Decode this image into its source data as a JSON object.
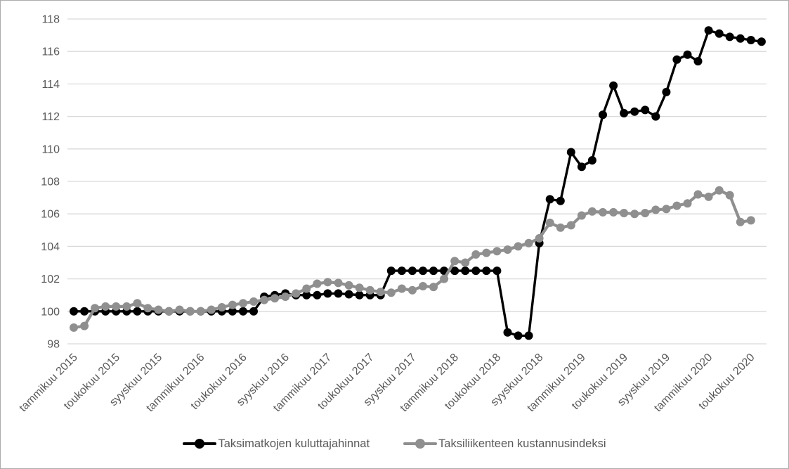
{
  "chart_data": {
    "type": "line",
    "title": "",
    "xlabel": "",
    "ylabel": "",
    "ylim": [
      98,
      118
    ],
    "yticks": [
      98,
      100,
      102,
      104,
      106,
      108,
      110,
      112,
      114,
      116,
      118
    ],
    "grid": true,
    "legend_position": "bottom",
    "x_tick_labels": [
      "tammikuu 2015",
      "toukokuu 2015",
      "syyskuu 2015",
      "tammikuu 2016",
      "toukokuu 2016",
      "syyskuu 2016",
      "tammikuu 2017",
      "toukokuu 2017",
      "syyskuu 2017",
      "tammikuu 2018",
      "toukokuu 2018",
      "syyskuu 2018",
      "tammikuu 2019",
      "toukokuu 2019",
      "syyskuu 2019",
      "tammikuu 2020",
      "toukokuu 2020"
    ],
    "months_per_tick": 4,
    "x_frequency": "monthly",
    "series": [
      {
        "name": "Taksimatkojen kuluttajahinnat",
        "color": "#000000",
        "values": [
          100.0,
          100.0,
          100.0,
          100.0,
          100.0,
          100.0,
          100.0,
          100.0,
          100.0,
          100.0,
          100.0,
          100.0,
          100.0,
          100.0,
          100.0,
          100.0,
          100.0,
          100.0,
          100.9,
          101.0,
          101.1,
          101.0,
          101.0,
          101.0,
          101.1,
          101.1,
          101.05,
          101.0,
          101.0,
          101.0,
          102.5,
          102.5,
          102.5,
          102.5,
          102.5,
          102.5,
          102.5,
          102.5,
          102.5,
          102.5,
          102.5,
          98.7,
          98.5,
          98.5,
          104.2,
          106.9,
          106.8,
          109.8,
          108.9,
          109.3,
          112.1,
          113.9,
          112.2,
          112.3,
          112.4,
          112.0,
          113.5,
          115.5,
          115.8,
          115.4,
          117.3,
          117.1,
          116.9,
          116.8,
          116.7,
          116.6
        ]
      },
      {
        "name": "Taksiliikenteen kustannusindeksi",
        "color": "#8f8f8f",
        "values": [
          99.0,
          99.1,
          100.2,
          100.3,
          100.3,
          100.3,
          100.5,
          100.2,
          100.1,
          100.0,
          100.1,
          100.0,
          100.0,
          100.1,
          100.25,
          100.4,
          100.5,
          100.6,
          100.7,
          100.8,
          100.9,
          101.1,
          101.4,
          101.7,
          101.8,
          101.75,
          101.6,
          101.45,
          101.3,
          101.2,
          101.15,
          101.4,
          101.3,
          101.55,
          101.5,
          102.0,
          103.1,
          103.0,
          103.5,
          103.6,
          103.7,
          103.8,
          104.0,
          104.2,
          104.5,
          105.45,
          105.15,
          105.3,
          105.9,
          106.15,
          106.1,
          106.1,
          106.05,
          106.0,
          106.05,
          106.25,
          106.3,
          106.5,
          106.65,
          107.2,
          107.05,
          107.45,
          107.15,
          105.5,
          105.6
        ]
      }
    ]
  },
  "style": {
    "gridline_color": "#d9d9d9",
    "axis_label_color": "#595959",
    "background_color": "#ffffff",
    "frame_border_color": "#ababab"
  },
  "legend": {
    "items": [
      "Taksimatkojen kuluttajahinnat",
      "Taksiliikenteen kustannusindeksi"
    ]
  }
}
